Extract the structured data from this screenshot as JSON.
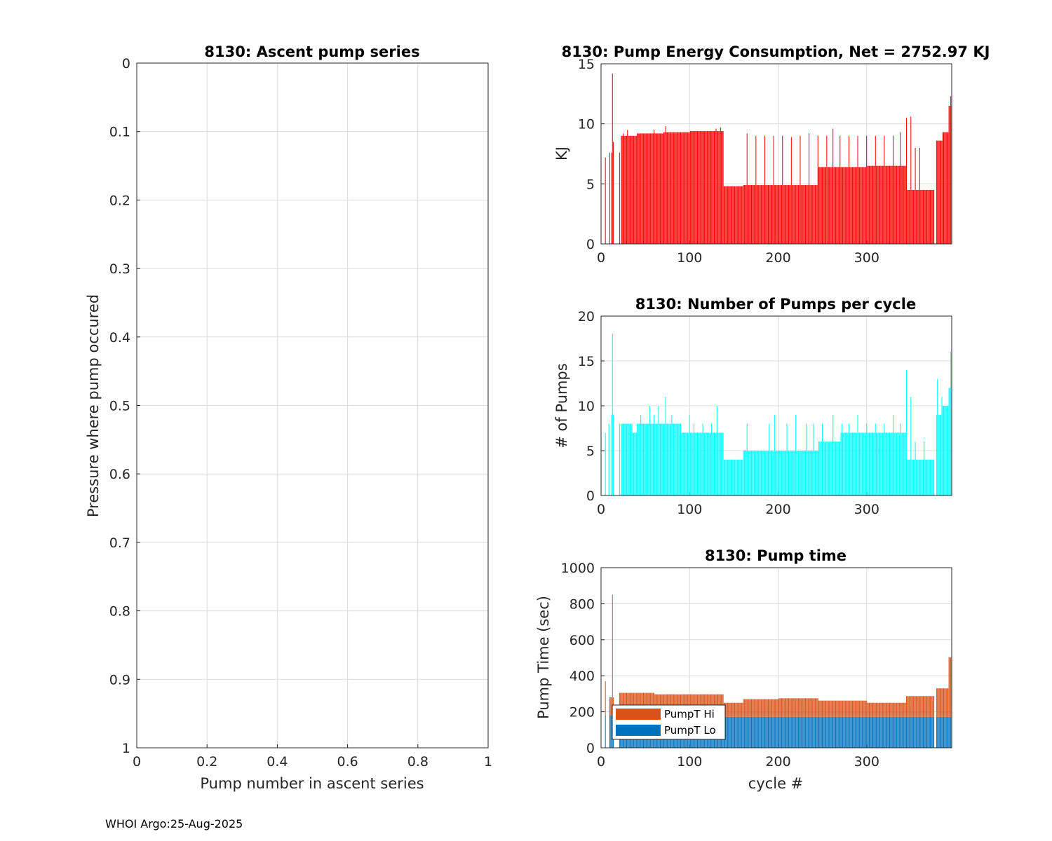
{
  "footer": "WHOI Argo:25-Aug-2025",
  "chart_data": [
    {
      "type": "scatter",
      "title": "8130: Ascent pump series",
      "xlabel": "Pump number in ascent series",
      "ylabel": "Pressure where pump occured",
      "xlim": [
        0,
        1
      ],
      "ylim": [
        0,
        1
      ],
      "y_reversed": true,
      "xticks": [
        "0",
        "0.2",
        "0.4",
        "0.6",
        "0.8",
        "1"
      ],
      "yticks": [
        "0",
        "0.1",
        "0.2",
        "0.3",
        "0.4",
        "0.5",
        "0.6",
        "0.7",
        "0.8",
        "0.9",
        "1"
      ],
      "grid": true,
      "series": []
    },
    {
      "type": "bar",
      "title": "8130: Pump Energy Consumption,  Net = 2752.97 KJ",
      "xlabel": "",
      "ylabel": "KJ",
      "xlim": [
        0,
        396
      ],
      "ylim": [
        0,
        15
      ],
      "xticks": [
        "0",
        "100",
        "200",
        "300"
      ],
      "yticks": [
        "0",
        "5",
        "10",
        "15"
      ],
      "grid": true,
      "color": "#ff0000",
      "segments": [
        {
          "from": 1,
          "to": 4,
          "value": 0
        },
        {
          "from": 5,
          "to": 5,
          "value": 7.2
        },
        {
          "from": 6,
          "to": 9,
          "value": 0
        },
        {
          "from": 10,
          "to": 10,
          "value": 7.6
        },
        {
          "from": 11,
          "to": 11,
          "value": 0
        },
        {
          "from": 12,
          "to": 12,
          "value": 7.6
        },
        {
          "from": 13,
          "to": 13,
          "value": 14.2
        },
        {
          "from": 14,
          "to": 14,
          "value": 8.5
        },
        {
          "from": 15,
          "to": 20,
          "value": 0
        },
        {
          "from": 21,
          "to": 21,
          "value": 7.6
        },
        {
          "from": 22,
          "to": 22,
          "value": 0
        },
        {
          "from": 23,
          "to": 40,
          "value": 9.0
        },
        {
          "from": 41,
          "to": 70,
          "value": 9.2
        },
        {
          "from": 71,
          "to": 100,
          "value": 9.3
        },
        {
          "from": 101,
          "to": 138,
          "value": 9.4
        },
        {
          "from": 139,
          "to": 160,
          "value": 4.8
        },
        {
          "from": 161,
          "to": 200,
          "value": 4.9
        },
        {
          "from": 201,
          "to": 245,
          "value": 4.9
        },
        {
          "from": 246,
          "to": 300,
          "value": 6.4
        },
        {
          "from": 301,
          "to": 344,
          "value": 6.5
        },
        {
          "from": 345,
          "to": 376,
          "value": 4.5
        },
        {
          "from": 377,
          "to": 378,
          "value": 0
        },
        {
          "from": 379,
          "to": 385,
          "value": 8.6
        },
        {
          "from": 386,
          "to": 392,
          "value": 9.3
        },
        {
          "from": 393,
          "to": 396,
          "value": 11.5
        }
      ],
      "spikes": [
        {
          "x": 25,
          "value": 9.2
        },
        {
          "x": 30,
          "value": 9.5
        },
        {
          "x": 60,
          "value": 9.5
        },
        {
          "x": 73,
          "value": 9.8
        },
        {
          "x": 130,
          "value": 9.6
        },
        {
          "x": 135,
          "value": 9.7
        },
        {
          "x": 165,
          "value": 9.2
        },
        {
          "x": 175,
          "value": 9.0
        },
        {
          "x": 185,
          "value": 9.0
        },
        {
          "x": 195,
          "value": 9.0
        },
        {
          "x": 205,
          "value": 9.0
        },
        {
          "x": 215,
          "value": 8.9
        },
        {
          "x": 225,
          "value": 9.0
        },
        {
          "x": 235,
          "value": 9.2
        },
        {
          "x": 245,
          "value": 9.0
        },
        {
          "x": 255,
          "value": 9.0
        },
        {
          "x": 262,
          "value": 9.6
        },
        {
          "x": 270,
          "value": 9.0
        },
        {
          "x": 280,
          "value": 9.0
        },
        {
          "x": 290,
          "value": 9.0
        },
        {
          "x": 300,
          "value": 9.0
        },
        {
          "x": 310,
          "value": 9.0
        },
        {
          "x": 320,
          "value": 9.0
        },
        {
          "x": 330,
          "value": 9.0
        },
        {
          "x": 338,
          "value": 9.3
        },
        {
          "x": 345,
          "value": 10.5
        },
        {
          "x": 350,
          "value": 10.6
        },
        {
          "x": 355,
          "value": 8.0
        },
        {
          "x": 360,
          "value": 8.0
        },
        {
          "x": 395,
          "value": 12.3
        }
      ]
    },
    {
      "type": "bar",
      "title": "8130: Number of Pumps per cycle",
      "xlabel": "",
      "ylabel": "# of Pumps",
      "xlim": [
        0,
        396
      ],
      "ylim": [
        0,
        20
      ],
      "xticks": [
        "0",
        "100",
        "200",
        "300"
      ],
      "yticks": [
        "0",
        "5",
        "10",
        "15",
        "20"
      ],
      "grid": true,
      "color": "#00ffff",
      "segments": [
        {
          "from": 1,
          "to": 4,
          "value": 0
        },
        {
          "from": 5,
          "to": 5,
          "value": 7
        },
        {
          "from": 6,
          "to": 8,
          "value": 0
        },
        {
          "from": 9,
          "to": 9,
          "value": 8
        },
        {
          "from": 10,
          "to": 11,
          "value": 0
        },
        {
          "from": 12,
          "to": 12,
          "value": 9
        },
        {
          "from": 13,
          "to": 13,
          "value": 18
        },
        {
          "from": 14,
          "to": 14,
          "value": 9
        },
        {
          "from": 15,
          "to": 20,
          "value": 0
        },
        {
          "from": 21,
          "to": 21,
          "value": 8
        },
        {
          "from": 22,
          "to": 22,
          "value": 0
        },
        {
          "from": 23,
          "to": 35,
          "value": 8
        },
        {
          "from": 36,
          "to": 40,
          "value": 7
        },
        {
          "from": 41,
          "to": 90,
          "value": 8
        },
        {
          "from": 91,
          "to": 138,
          "value": 7
        },
        {
          "from": 139,
          "to": 160,
          "value": 4
        },
        {
          "from": 161,
          "to": 200,
          "value": 5
        },
        {
          "from": 201,
          "to": 245,
          "value": 5
        },
        {
          "from": 246,
          "to": 270,
          "value": 6
        },
        {
          "from": 271,
          "to": 344,
          "value": 7
        },
        {
          "from": 345,
          "to": 376,
          "value": 4
        },
        {
          "from": 377,
          "to": 378,
          "value": 0
        },
        {
          "from": 379,
          "to": 385,
          "value": 9
        },
        {
          "from": 386,
          "to": 392,
          "value": 10
        },
        {
          "from": 393,
          "to": 396,
          "value": 12
        }
      ],
      "spikes": [
        {
          "x": 30,
          "value": 8
        },
        {
          "x": 45,
          "value": 9
        },
        {
          "x": 55,
          "value": 10
        },
        {
          "x": 60,
          "value": 9
        },
        {
          "x": 65,
          "value": 10
        },
        {
          "x": 73,
          "value": 11
        },
        {
          "x": 80,
          "value": 9
        },
        {
          "x": 100,
          "value": 9
        },
        {
          "x": 105,
          "value": 8
        },
        {
          "x": 115,
          "value": 8
        },
        {
          "x": 125,
          "value": 8
        },
        {
          "x": 131,
          "value": 10
        },
        {
          "x": 165,
          "value": 8
        },
        {
          "x": 190,
          "value": 8
        },
        {
          "x": 196,
          "value": 9
        },
        {
          "x": 210,
          "value": 8
        },
        {
          "x": 220,
          "value": 9
        },
        {
          "x": 232,
          "value": 8
        },
        {
          "x": 240,
          "value": 8
        },
        {
          "x": 250,
          "value": 8
        },
        {
          "x": 262,
          "value": 9
        },
        {
          "x": 272,
          "value": 8
        },
        {
          "x": 280,
          "value": 8
        },
        {
          "x": 290,
          "value": 9
        },
        {
          "x": 300,
          "value": 8
        },
        {
          "x": 310,
          "value": 8
        },
        {
          "x": 320,
          "value": 8
        },
        {
          "x": 330,
          "value": 9
        },
        {
          "x": 338,
          "value": 8
        },
        {
          "x": 345,
          "value": 14
        },
        {
          "x": 350,
          "value": 11
        },
        {
          "x": 355,
          "value": 6
        },
        {
          "x": 365,
          "value": 6
        },
        {
          "x": 380,
          "value": 13
        },
        {
          "x": 385,
          "value": 11
        },
        {
          "x": 395,
          "value": 16
        }
      ]
    },
    {
      "type": "bar",
      "stacked": true,
      "title": "8130: Pump time",
      "xlabel": "cycle #",
      "ylabel": "Pump Time (sec)",
      "xlim": [
        0,
        396
      ],
      "ylim": [
        0,
        1000
      ],
      "xticks": [
        "0",
        "100",
        "200",
        "300"
      ],
      "yticks": [
        "0",
        "200",
        "400",
        "600",
        "800",
        "1000"
      ],
      "grid": true,
      "legend_position": "bottom-left",
      "series": [
        {
          "name": "PumpT Lo",
          "color": "#0072bd",
          "segments": [
            {
              "from": 1,
              "to": 4,
              "value": 0
            },
            {
              "from": 5,
              "to": 5,
              "value": 180
            },
            {
              "from": 6,
              "to": 9,
              "value": 0
            },
            {
              "from": 10,
              "to": 14,
              "value": 180
            },
            {
              "from": 15,
              "to": 20,
              "value": 0
            },
            {
              "from": 21,
              "to": 376,
              "value": 172
            },
            {
              "from": 377,
              "to": 378,
              "value": 0
            },
            {
              "from": 379,
              "to": 396,
              "value": 172
            }
          ]
        },
        {
          "name": "PumpT Hi",
          "color": "#d95319",
          "segments": [
            {
              "from": 1,
              "to": 4,
              "value": 0
            },
            {
              "from": 5,
              "to": 5,
              "value": 190
            },
            {
              "from": 6,
              "to": 9,
              "value": 0
            },
            {
              "from": 10,
              "to": 12,
              "value": 100
            },
            {
              "from": 13,
              "to": 13,
              "value": 670
            },
            {
              "from": 14,
              "to": 14,
              "value": 100
            },
            {
              "from": 15,
              "to": 20,
              "value": 0
            },
            {
              "from": 21,
              "to": 60,
              "value": 133
            },
            {
              "from": 61,
              "to": 138,
              "value": 125
            },
            {
              "from": 139,
              "to": 160,
              "value": 78
            },
            {
              "from": 161,
              "to": 200,
              "value": 98
            },
            {
              "from": 201,
              "to": 245,
              "value": 103
            },
            {
              "from": 246,
              "to": 300,
              "value": 90
            },
            {
              "from": 301,
              "to": 344,
              "value": 78
            },
            {
              "from": 345,
              "to": 376,
              "value": 115
            },
            {
              "from": 377,
              "to": 378,
              "value": 0
            },
            {
              "from": 379,
              "to": 392,
              "value": 158
            },
            {
              "from": 393,
              "to": 396,
              "value": 330
            }
          ]
        }
      ]
    }
  ]
}
